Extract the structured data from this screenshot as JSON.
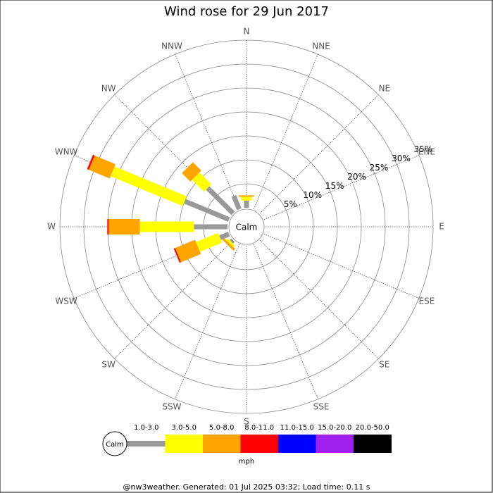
{
  "chart_data": {
    "type": "windrose",
    "title": "Wind rose for 29 Jun 2017",
    "directions": [
      "N",
      "NNE",
      "NE",
      "ENE",
      "E",
      "ESE",
      "SE",
      "SSE",
      "S",
      "SSW",
      "SW",
      "WSW",
      "W",
      "WNW",
      "NW",
      "NNW"
    ],
    "calm_label": "Calm",
    "rlim": [
      0,
      35
    ],
    "rticks": [
      {
        "value": 5,
        "label": "5%"
      },
      {
        "value": 10,
        "label": "10%"
      },
      {
        "value": 15,
        "label": "15%"
      },
      {
        "value": 20,
        "label": "20%"
      },
      {
        "value": 25,
        "label": "25%"
      },
      {
        "value": 30,
        "label": "30%"
      },
      {
        "value": 35,
        "label": "35%"
      }
    ],
    "series": [
      {
        "name": "1.0-3.0",
        "color": "#999999",
        "values": [
          1.5,
          0,
          0,
          0,
          0,
          0,
          0,
          0,
          0,
          0,
          0.5,
          2,
          7,
          10,
          7.5,
          3
        ]
      },
      {
        "name": "3.0-5.0",
        "color": "#ffff00",
        "values": [
          0.8,
          0,
          0,
          0,
          0,
          0,
          0,
          0,
          0,
          0,
          0.5,
          5,
          11.3,
          16.3,
          3.5,
          0
        ]
      },
      {
        "name": "5.0-8.0",
        "color": "#ffa500",
        "values": [
          0.3,
          0,
          0,
          0,
          0,
          0,
          0,
          0,
          0,
          0,
          0.5,
          4.5,
          6.5,
          4.7,
          2.5,
          0
        ]
      },
      {
        "name": "8.0-11.0",
        "color": "#ff0000",
        "values": [
          0,
          0,
          0,
          0,
          0,
          0,
          0,
          0,
          0,
          0,
          0,
          0.3,
          0.3,
          0.4,
          0,
          0
        ]
      },
      {
        "name": "11.0-15.0",
        "color": "#0000ff",
        "values": [
          0,
          0,
          0,
          0,
          0,
          0,
          0,
          0,
          0,
          0,
          0,
          0,
          0,
          0,
          0,
          0
        ]
      },
      {
        "name": "15.0-20.0",
        "color": "#a020f0",
        "values": [
          0,
          0,
          0,
          0,
          0,
          0,
          0,
          0,
          0,
          0,
          0,
          0,
          0,
          0,
          0,
          0
        ]
      },
      {
        "name": "20.0-50.0",
        "color": "#000000",
        "values": [
          0,
          0,
          0,
          0,
          0,
          0,
          0,
          0,
          0,
          0,
          0,
          0,
          0,
          0,
          0,
          0
        ]
      }
    ],
    "unit_label": "mph",
    "footer": "@nw3weather. Generated: 01 Jul 2025 03:32; Load time: 0.11 s"
  }
}
